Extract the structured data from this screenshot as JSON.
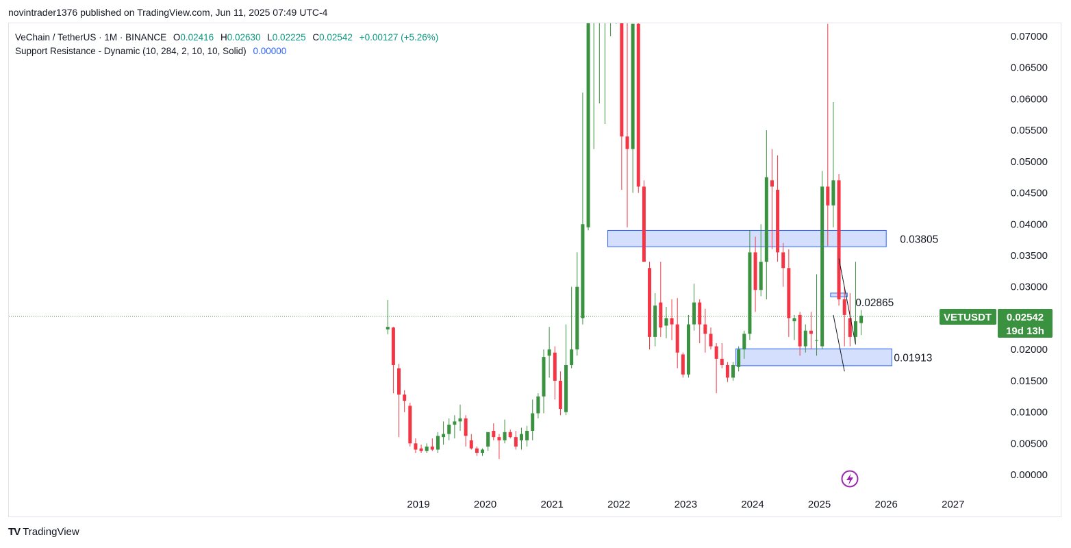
{
  "header": {
    "published": "novintrader1376 published on TradingView.com, Jun 11, 2025 07:49 UTC-4"
  },
  "legend": {
    "symbol": "VeChain / TetherUS · 1M · BINANCE",
    "o_label": "O",
    "o_value": "0.02416",
    "h_label": "H",
    "h_value": "0.02630",
    "l_label": "L",
    "l_value": "0.02225",
    "c_label": "C",
    "c_value": "0.02542",
    "change": "+0.00127 (+5.26%)",
    "indicator": "Support Resistance - Dynamic (10, 284, 2, 10, 10, Solid)",
    "indicator_value": "0.00000"
  },
  "badge": {
    "ticker": "VETUSDT",
    "price": "0.02542",
    "countdown": "19d 13h"
  },
  "footer": {
    "brand_icon": "TV",
    "brand": "TradingView"
  },
  "colors": {
    "up": "#3a913f",
    "down": "#f23645",
    "zone_fill": "#d3dffc",
    "zone_stroke": "#2962ff",
    "badge": "#3a913f"
  },
  "chart_data": {
    "type": "candlestick",
    "interval": "1M",
    "x_ticks": [
      "2019",
      "2020",
      "2021",
      "2022",
      "2023",
      "2024",
      "2025",
      "2026",
      "2027"
    ],
    "y_ticks": [
      "0.07000",
      "0.06500",
      "0.06000",
      "0.05500",
      "0.05000",
      "0.04500",
      "0.04000",
      "0.03500",
      "0.03000",
      "0.02500",
      "0.02000",
      "0.01500",
      "0.01000",
      "0.00500",
      "0.00000"
    ],
    "ylim": [
      -0.002,
      0.0725
    ],
    "last_price": 0.02542,
    "zones": [
      {
        "label": "0.03805",
        "start": "2021-11",
        "end": "2025-12",
        "high": 0.039,
        "low": 0.0364
      },
      {
        "label": "0.02865",
        "start": "2025-03",
        "end": "2025-05",
        "high": 0.029,
        "low": 0.0284
      },
      {
        "label": "0.01913",
        "start": "2023-10",
        "end": "2026-01",
        "high": 0.0201,
        "low": 0.0174
      }
    ],
    "candles": [
      {
        "t": "2018-07",
        "o": 0.0232,
        "h": 0.0279,
        "l": 0.0224,
        "c": 0.0236
      },
      {
        "t": "2018-08",
        "o": 0.0235,
        "h": 0.0236,
        "l": 0.013,
        "c": 0.0175
      },
      {
        "t": "2018-09",
        "o": 0.017,
        "h": 0.0177,
        "l": 0.006,
        "c": 0.0128
      },
      {
        "t": "2018-10",
        "o": 0.0128,
        "h": 0.0135,
        "l": 0.01,
        "c": 0.0118
      },
      {
        "t": "2018-11",
        "o": 0.011,
        "h": 0.0115,
        "l": 0.0045,
        "c": 0.005
      },
      {
        "t": "2018-12",
        "o": 0.005,
        "h": 0.0058,
        "l": 0.0035,
        "c": 0.004
      },
      {
        "t": "2019-01",
        "o": 0.0042,
        "h": 0.0048,
        "l": 0.0035,
        "c": 0.0038
      },
      {
        "t": "2019-02",
        "o": 0.0038,
        "h": 0.005,
        "l": 0.0035,
        "c": 0.0045
      },
      {
        "t": "2019-03",
        "o": 0.0045,
        "h": 0.0058,
        "l": 0.0038,
        "c": 0.004
      },
      {
        "t": "2019-04",
        "o": 0.004,
        "h": 0.0068,
        "l": 0.0035,
        "c": 0.0062
      },
      {
        "t": "2019-05",
        "o": 0.006,
        "h": 0.0085,
        "l": 0.0048,
        "c": 0.0065
      },
      {
        "t": "2019-06",
        "o": 0.0065,
        "h": 0.009,
        "l": 0.0055,
        "c": 0.008
      },
      {
        "t": "2019-07",
        "o": 0.008,
        "h": 0.0095,
        "l": 0.0058,
        "c": 0.0085
      },
      {
        "t": "2019-08",
        "o": 0.0085,
        "h": 0.0112,
        "l": 0.007,
        "c": 0.009
      },
      {
        "t": "2019-09",
        "o": 0.009,
        "h": 0.0095,
        "l": 0.0045,
        "c": 0.0062
      },
      {
        "t": "2019-10",
        "o": 0.0055,
        "h": 0.0065,
        "l": 0.004,
        "c": 0.0042
      },
      {
        "t": "2019-11",
        "o": 0.0042,
        "h": 0.0045,
        "l": 0.003,
        "c": 0.0035
      },
      {
        "t": "2019-12",
        "o": 0.0035,
        "h": 0.0042,
        "l": 0.003,
        "c": 0.004
      },
      {
        "t": "2020-01",
        "o": 0.0045,
        "h": 0.0068,
        "l": 0.0038,
        "c": 0.0068
      },
      {
        "t": "2020-02",
        "o": 0.007,
        "h": 0.0082,
        "l": 0.0055,
        "c": 0.006
      },
      {
        "t": "2020-03",
        "o": 0.006,
        "h": 0.0065,
        "l": 0.0025,
        "c": 0.0055
      },
      {
        "t": "2020-04",
        "o": 0.0055,
        "h": 0.0088,
        "l": 0.005,
        "c": 0.0068
      },
      {
        "t": "2020-05",
        "o": 0.0068,
        "h": 0.0072,
        "l": 0.0058,
        "c": 0.006
      },
      {
        "t": "2020-06",
        "o": 0.006,
        "h": 0.007,
        "l": 0.004,
        "c": 0.0045
      },
      {
        "t": "2020-07",
        "o": 0.0055,
        "h": 0.0075,
        "l": 0.004,
        "c": 0.0065
      },
      {
        "t": "2020-08",
        "o": 0.0055,
        "h": 0.0078,
        "l": 0.0045,
        "c": 0.007
      },
      {
        "t": "2020-09",
        "o": 0.007,
        "h": 0.012,
        "l": 0.0055,
        "c": 0.0098
      },
      {
        "t": "2020-10",
        "o": 0.0098,
        "h": 0.013,
        "l": 0.009,
        "c": 0.0125
      },
      {
        "t": "2020-11",
        "o": 0.0125,
        "h": 0.02,
        "l": 0.0098,
        "c": 0.0188
      },
      {
        "t": "2020-12",
        "o": 0.019,
        "h": 0.0236,
        "l": 0.0155,
        "c": 0.02
      },
      {
        "t": "2021-01",
        "o": 0.0195,
        "h": 0.0205,
        "l": 0.012,
        "c": 0.015
      },
      {
        "t": "2021-02",
        "o": 0.015,
        "h": 0.0165,
        "l": 0.0095,
        "c": 0.0105
      },
      {
        "t": "2021-03",
        "o": 0.01,
        "h": 0.024,
        "l": 0.0095,
        "c": 0.0175
      },
      {
        "t": "2021-04",
        "o": 0.0175,
        "h": 0.03,
        "l": 0.017,
        "c": 0.02
      },
      {
        "t": "2021-05",
        "o": 0.02,
        "h": 0.0355,
        "l": 0.019,
        "c": 0.03
      },
      {
        "t": "2021-06",
        "o": 0.025,
        "h": 0.061,
        "l": 0.024,
        "c": 0.04
      },
      {
        "t": "2021-07",
        "o": 0.0395,
        "h": 0.076,
        "l": 0.039,
        "c": 0.076
      },
      {
        "t": "2021-08",
        "o": 0.078,
        "h": 0.08,
        "l": 0.052,
        "c": 0.078
      },
      {
        "t": "2021-09",
        "o": 0.079,
        "h": 0.08,
        "l": 0.0593,
        "c": 0.079
      },
      {
        "t": "2021-10",
        "o": 0.079,
        "h": 0.08,
        "l": 0.056,
        "c": 0.079
      },
      {
        "t": "2021-11",
        "o": 0.079,
        "h": 0.08,
        "l": 0.07,
        "c": 0.079
      },
      {
        "t": "2021-12",
        "o": 0.079,
        "h": 0.08,
        "l": 0.072,
        "c": 0.079
      },
      {
        "t": "2022-01",
        "o": 0.078,
        "h": 0.08,
        "l": 0.0455,
        "c": 0.054
      },
      {
        "t": "2022-02",
        "o": 0.054,
        "h": 0.078,
        "l": 0.0395,
        "c": 0.052
      },
      {
        "t": "2022-03",
        "o": 0.052,
        "h": 0.072,
        "l": 0.045,
        "c": 0.072
      },
      {
        "t": "2022-04",
        "o": 0.072,
        "h": 0.073,
        "l": 0.045,
        "c": 0.046
      },
      {
        "t": "2022-05",
        "o": 0.046,
        "h": 0.047,
        "l": 0.034,
        "c": 0.034
      },
      {
        "t": "2022-06",
        "o": 0.033,
        "h": 0.034,
        "l": 0.02,
        "c": 0.022
      },
      {
        "t": "2022-07",
        "o": 0.022,
        "h": 0.029,
        "l": 0.0205,
        "c": 0.027
      },
      {
        "t": "2022-08",
        "o": 0.0275,
        "h": 0.034,
        "l": 0.022,
        "c": 0.0235
      },
      {
        "t": "2022-09",
        "o": 0.0238,
        "h": 0.0268,
        "l": 0.0218,
        "c": 0.025
      },
      {
        "t": "2022-10",
        "o": 0.025,
        "h": 0.028,
        "l": 0.0215,
        "c": 0.024
      },
      {
        "t": "2022-11",
        "o": 0.024,
        "h": 0.0282,
        "l": 0.017,
        "c": 0.0195
      },
      {
        "t": "2022-12",
        "o": 0.0192,
        "h": 0.0195,
        "l": 0.0155,
        "c": 0.016
      },
      {
        "t": "2023-01",
        "o": 0.016,
        "h": 0.0255,
        "l": 0.0155,
        "c": 0.024
      },
      {
        "t": "2023-02",
        "o": 0.024,
        "h": 0.0305,
        "l": 0.023,
        "c": 0.0275
      },
      {
        "t": "2023-03",
        "o": 0.0275,
        "h": 0.028,
        "l": 0.021,
        "c": 0.024
      },
      {
        "t": "2023-04",
        "o": 0.024,
        "h": 0.0265,
        "l": 0.0195,
        "c": 0.0225
      },
      {
        "t": "2023-05",
        "o": 0.0225,
        "h": 0.0235,
        "l": 0.02,
        "c": 0.0205
      },
      {
        "t": "2023-06",
        "o": 0.0205,
        "h": 0.021,
        "l": 0.013,
        "c": 0.0185
      },
      {
        "t": "2023-07",
        "o": 0.0185,
        "h": 0.021,
        "l": 0.017,
        "c": 0.0175
      },
      {
        "t": "2023-08",
        "o": 0.0175,
        "h": 0.018,
        "l": 0.0148,
        "c": 0.0155
      },
      {
        "t": "2023-09",
        "o": 0.0155,
        "h": 0.018,
        "l": 0.015,
        "c": 0.0175
      },
      {
        "t": "2023-10",
        "o": 0.0172,
        "h": 0.0205,
        "l": 0.0165,
        "c": 0.02
      },
      {
        "t": "2023-11",
        "o": 0.02,
        "h": 0.023,
        "l": 0.0185,
        "c": 0.0225
      },
      {
        "t": "2023-12",
        "o": 0.0225,
        "h": 0.039,
        "l": 0.0215,
        "c": 0.0355
      },
      {
        "t": "2024-01",
        "o": 0.0355,
        "h": 0.038,
        "l": 0.026,
        "c": 0.0295
      },
      {
        "t": "2024-02",
        "o": 0.0295,
        "h": 0.04,
        "l": 0.0285,
        "c": 0.034
      },
      {
        "t": "2024-03",
        "o": 0.034,
        "h": 0.055,
        "l": 0.028,
        "c": 0.0475
      },
      {
        "t": "2024-04",
        "o": 0.047,
        "h": 0.052,
        "l": 0.036,
        "c": 0.046
      },
      {
        "t": "2024-05",
        "o": 0.0455,
        "h": 0.051,
        "l": 0.034,
        "c": 0.0355
      },
      {
        "t": "2024-06",
        "o": 0.0355,
        "h": 0.037,
        "l": 0.03,
        "c": 0.033
      },
      {
        "t": "2024-07",
        "o": 0.033,
        "h": 0.036,
        "l": 0.022,
        "c": 0.025
      },
      {
        "t": "2024-08",
        "o": 0.0245,
        "h": 0.0255,
        "l": 0.0215,
        "c": 0.025
      },
      {
        "t": "2024-09",
        "o": 0.0255,
        "h": 0.026,
        "l": 0.019,
        "c": 0.0205
      },
      {
        "t": "2024-10",
        "o": 0.0205,
        "h": 0.024,
        "l": 0.0195,
        "c": 0.023
      },
      {
        "t": "2024-11",
        "o": 0.023,
        "h": 0.026,
        "l": 0.02,
        "c": 0.0225
      },
      {
        "t": "2024-12",
        "o": 0.0215,
        "h": 0.032,
        "l": 0.019,
        "c": 0.0215
      },
      {
        "t": "2025-01",
        "o": 0.0205,
        "h": 0.0485,
        "l": 0.02,
        "c": 0.046
      },
      {
        "t": "2025-02",
        "o": 0.046,
        "h": 0.072,
        "l": 0.0365,
        "c": 0.043
      },
      {
        "t": "2025-03",
        "o": 0.043,
        "h": 0.0595,
        "l": 0.0395,
        "c": 0.047
      },
      {
        "t": "2025-04",
        "o": 0.047,
        "h": 0.048,
        "l": 0.027,
        "c": 0.028
      },
      {
        "t": "2025-05",
        "o": 0.028,
        "h": 0.03,
        "l": 0.0205,
        "c": 0.0255
      },
      {
        "t": "2025-06",
        "o": 0.025,
        "h": 0.029,
        "l": 0.0205,
        "c": 0.022
      },
      {
        "t": "2025-07",
        "o": 0.022,
        "h": 0.034,
        "l": 0.021,
        "c": 0.0245
      },
      {
        "t": "2025-08",
        "o": 0.0242,
        "h": 0.0263,
        "l": 0.0223,
        "c": 0.0254
      }
    ],
    "trendlines": [
      {
        "from": {
          "t": "2025-04",
          "p": 0.0345
        },
        "to": {
          "t": "2025-07",
          "p": 0.0208
        }
      },
      {
        "from": {
          "t": "2025-03",
          "p": 0.0255
        },
        "to": {
          "t": "2025-05",
          "p": 0.0165
        }
      }
    ]
  }
}
